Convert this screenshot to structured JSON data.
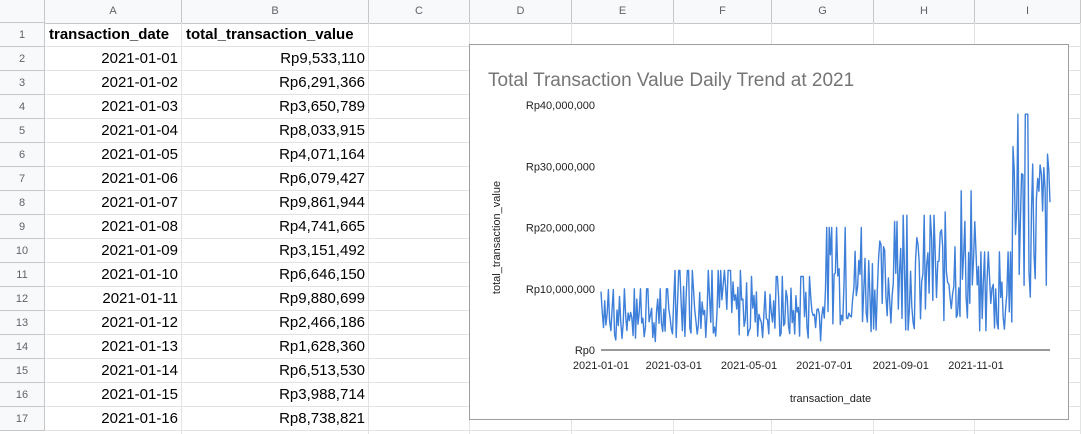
{
  "sheet": {
    "columns": [
      "A",
      "B",
      "C",
      "D",
      "E",
      "F",
      "G",
      "H",
      "I"
    ],
    "rows": [
      "1",
      "2",
      "3",
      "4",
      "5",
      "6",
      "7",
      "8",
      "9",
      "10",
      "11",
      "12",
      "13",
      "14",
      "15",
      "16",
      "17"
    ],
    "header": {
      "a": "transaction_date",
      "b": "total_transaction_value"
    },
    "data": [
      {
        "date": "2021-01-01",
        "value": "Rp9,533,110"
      },
      {
        "date": "2021-01-02",
        "value": "Rp6,291,366"
      },
      {
        "date": "2021-01-03",
        "value": "Rp3,650,789"
      },
      {
        "date": "2021-01-04",
        "value": "Rp8,033,915"
      },
      {
        "date": "2021-01-05",
        "value": "Rp4,071,164"
      },
      {
        "date": "2021-01-06",
        "value": "Rp6,079,427"
      },
      {
        "date": "2021-01-07",
        "value": "Rp9,861,944"
      },
      {
        "date": "2021-01-08",
        "value": "Rp4,741,665"
      },
      {
        "date": "2021-01-09",
        "value": "Rp3,151,492"
      },
      {
        "date": "2021-01-10",
        "value": "Rp6,646,150"
      },
      {
        "date": "2021-01-11",
        "value": "Rp9,880,699"
      },
      {
        "date": "2021-01-12",
        "value": "Rp2,466,186"
      },
      {
        "date": "2021-01-13",
        "value": "Rp1,628,360"
      },
      {
        "date": "2021-01-14",
        "value": "Rp6,513,530"
      },
      {
        "date": "2021-01-15",
        "value": "Rp3,988,714"
      },
      {
        "date": "2021-01-16",
        "value": "Rp8,738,821"
      }
    ]
  },
  "chart_data": {
    "type": "line",
    "title": "Total Transaction Value Daily Trend at 2021",
    "xlabel": "transaction_date",
    "ylabel": "total_transaction_value",
    "x_ticks": [
      "2021-01-01",
      "2021-03-01",
      "2021-05-01",
      "2021-07-01",
      "2021-09-01",
      "2021-11-01"
    ],
    "y_ticks": [
      "Rp0",
      "Rp10,000,000",
      "Rp20,000,000",
      "Rp30,000,000",
      "Rp40,000,000"
    ],
    "ylim": [
      0,
      40000000
    ],
    "xlim": [
      "2021-01-01",
      "2021-12-31"
    ],
    "line_color": "#3d7fd9",
    "series": [
      {
        "x": [
          "2021-01-01",
          "2021-01-02",
          "2021-01-03",
          "2021-01-04",
          "2021-01-05",
          "2021-01-06",
          "2021-01-07",
          "2021-01-08",
          "2021-01-09",
          "2021-01-10",
          "2021-01-11",
          "2021-01-12",
          "2021-01-13",
          "2021-01-14",
          "2021-01-15",
          "2021-01-16"
        ],
        "values": [
          9533110,
          6291366,
          3650789,
          8033915,
          4071164,
          6079427,
          9861944,
          4741665,
          3151492,
          6646150,
          9880699,
          2466186,
          1628360,
          6513530,
          3988714,
          8738821
        ]
      }
    ],
    "monthly_pattern": [
      {
        "month": "2021-01",
        "low": 1000000,
        "high": 10000000
      },
      {
        "month": "2021-02",
        "low": 1000000,
        "high": 10000000
      },
      {
        "month": "2021-03",
        "low": 2000000,
        "high": 13000000
      },
      {
        "month": "2021-04",
        "low": 2000000,
        "high": 13000000
      },
      {
        "month": "2021-05",
        "low": 1500000,
        "high": 12000000
      },
      {
        "month": "2021-06",
        "low": 1500000,
        "high": 12000000
      },
      {
        "month": "2021-07",
        "low": 4000000,
        "high": 20000000
      },
      {
        "month": "2021-08",
        "low": 3000000,
        "high": 21000000
      },
      {
        "month": "2021-09",
        "low": 3000000,
        "high": 22000000
      },
      {
        "month": "2021-10",
        "low": 4000000,
        "high": 26000000
      },
      {
        "month": "2021-11",
        "low": 2000000,
        "high": 16000000
      },
      {
        "month": "2021-12",
        "low": 8000000,
        "high": 38500000
      }
    ]
  }
}
